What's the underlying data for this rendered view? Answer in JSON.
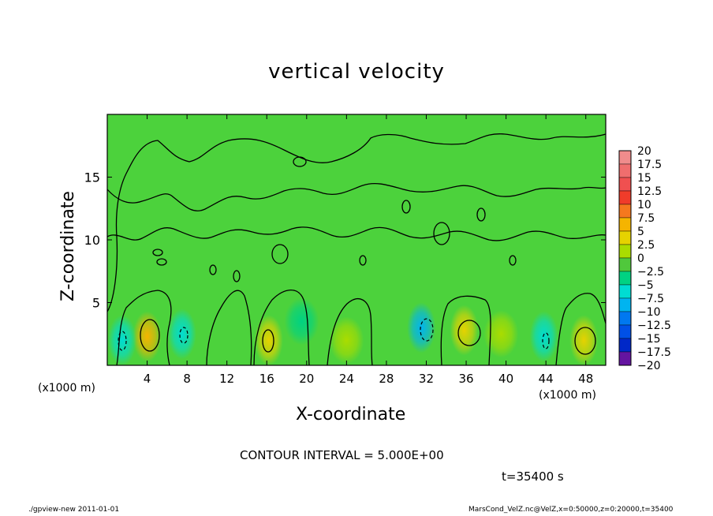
{
  "title": "vertical velocity",
  "footer": {
    "left": "./gpview-new  2011-01-01",
    "right": "MarsCond_VelZ.nc@VelZ,x=0:50000,z=0:20000,t=35400"
  },
  "annotations": {
    "contour_interval": "CONTOUR INTERVAL = 5.000E+00",
    "time": "t=35400 s",
    "xunit_left": "(x1000 m)",
    "xunit_right": "(x1000 m)"
  },
  "chart_data": {
    "type": "heatmap",
    "title": "vertical velocity",
    "xlabel": "X-coordinate",
    "ylabel": "Z-coordinate",
    "xlim": [
      0,
      50
    ],
    "ylim": [
      0,
      20
    ],
    "x_ticks": [
      4,
      8,
      12,
      16,
      20,
      24,
      28,
      32,
      36,
      40,
      44,
      48
    ],
    "y_ticks": [
      5,
      10,
      15
    ],
    "x_unit": "(x1000 m)",
    "contour_interval": 5.0,
    "colorbar": {
      "labels": [
        "20",
        "17.5",
        "15",
        "12.5",
        "10",
        "7.5",
        "5",
        "2.5",
        "0",
        "-2.5",
        "-5",
        "-7.5",
        "-10",
        "-12.5",
        "-15",
        "-17.5",
        "-20"
      ],
      "colors": [
        "#f08c8c",
        "#f06e6e",
        "#f05050",
        "#f03c2a",
        "#f5781e",
        "#f5b400",
        "#e6d200",
        "#aadc00",
        "#50c83c",
        "#00d282",
        "#00dcd2",
        "#00b4f0",
        "#0078f0",
        "#0050e6",
        "#0028c8",
        "#1e00b4",
        "#6414a0"
      ]
    },
    "features": [
      {
        "x": 4.0,
        "z": 2.3,
        "value": 7.5
      },
      {
        "x": 1.5,
        "z": 2.0,
        "value": -5
      },
      {
        "x": 7.5,
        "z": 2.5,
        "value": -5
      },
      {
        "x": 16.2,
        "z": 2.0,
        "value": 5
      },
      {
        "x": 19.5,
        "z": 3.5,
        "value": -2.5
      },
      {
        "x": 24.0,
        "z": 2.0,
        "value": 2.5
      },
      {
        "x": 31.5,
        "z": 3.0,
        "value": -7.5
      },
      {
        "x": 35.8,
        "z": 2.8,
        "value": 5
      },
      {
        "x": 39.5,
        "z": 2.5,
        "value": 2.5
      },
      {
        "x": 43.8,
        "z": 2.3,
        "value": -5
      },
      {
        "x": 47.8,
        "z": 2.0,
        "value": 5
      }
    ]
  }
}
